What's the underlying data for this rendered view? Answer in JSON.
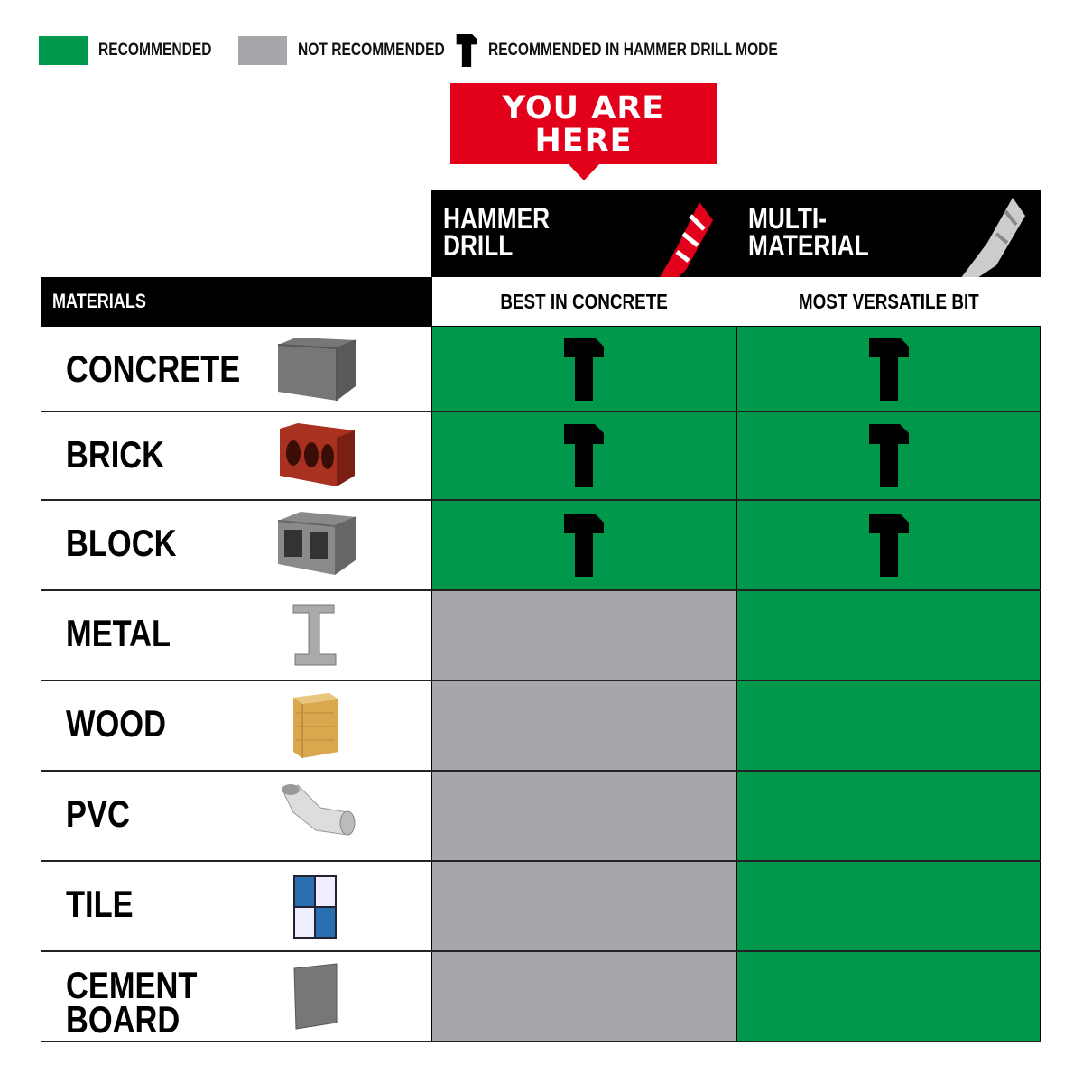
{
  "colors": {
    "recommended": "#00984a",
    "not_recommended": "#a7a7ab",
    "banner": "#e2001a"
  },
  "legend": {
    "recommended": "RECOMMENDED",
    "not_recommended": "NOT RECOMMENDED",
    "hammer": "RECOMMENDED IN HAMMER DRILL MODE",
    "hammer_icon": "hammer-icon"
  },
  "banner": {
    "line1": "YOU ARE",
    "line2": "HERE"
  },
  "columns": [
    {
      "title1": "HAMMER",
      "title2": "DRILL",
      "subtitle": "BEST IN CONCRETE",
      "bit": "red-drill-bit"
    },
    {
      "title1": "MULTI-",
      "title2": "MATERIAL",
      "subtitle": "MOST VERSATILE BIT",
      "bit": "silver-drill-bit"
    }
  ],
  "materials_header": "MATERIALS",
  "rows": [
    {
      "name1": "CONCRETE",
      "name2": "",
      "icon": "concrete",
      "cells": [
        "hammer",
        "hammer"
      ]
    },
    {
      "name1": "BRICK",
      "name2": "",
      "icon": "brick",
      "cells": [
        "hammer",
        "hammer"
      ]
    },
    {
      "name1": "BLOCK",
      "name2": "",
      "icon": "block",
      "cells": [
        "hammer",
        "hammer"
      ]
    },
    {
      "name1": "METAL",
      "name2": "",
      "icon": "metal",
      "cells": [
        "not_recommended",
        "recommended"
      ]
    },
    {
      "name1": "WOOD",
      "name2": "",
      "icon": "wood",
      "cells": [
        "not_recommended",
        "recommended"
      ]
    },
    {
      "name1": "PVC",
      "name2": "",
      "icon": "pvc",
      "cells": [
        "not_recommended",
        "recommended"
      ]
    },
    {
      "name1": "TILE",
      "name2": "",
      "icon": "tile",
      "cells": [
        "not_recommended",
        "recommended"
      ]
    },
    {
      "name1": "CEMENT",
      "name2": "BOARD",
      "icon": "cement-board",
      "cells": [
        "not_recommended",
        "recommended"
      ]
    }
  ]
}
